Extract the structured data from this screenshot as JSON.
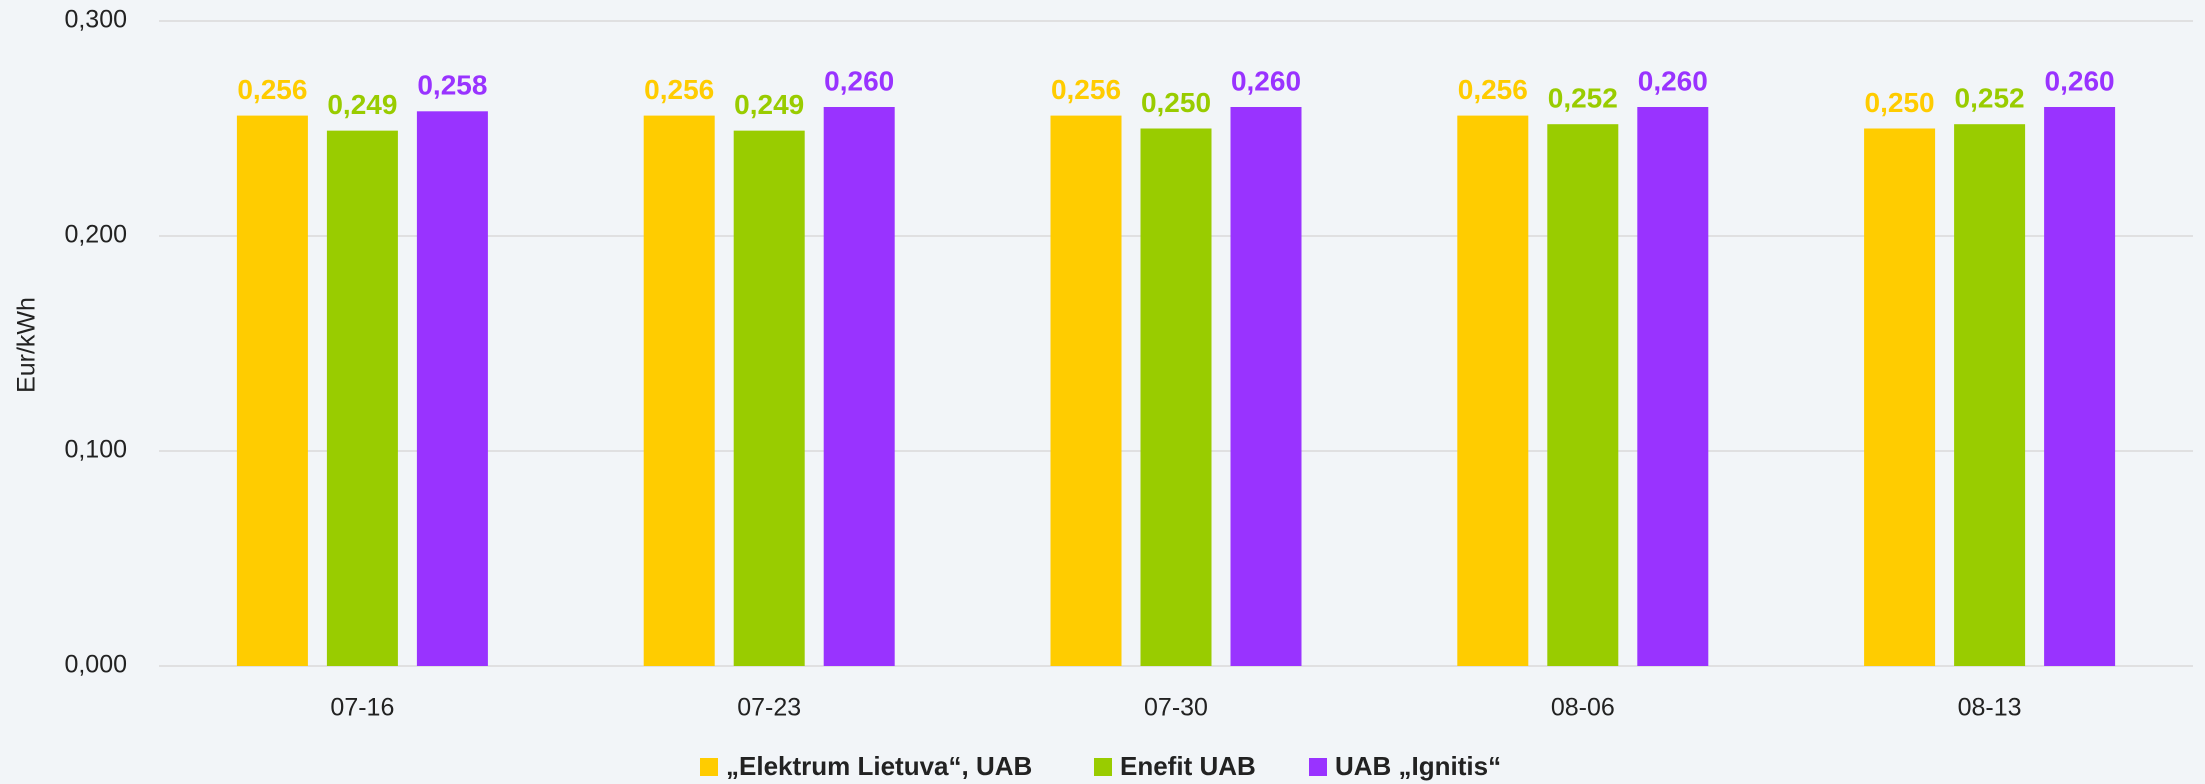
{
  "chart_data": {
    "type": "bar",
    "y_label": "Eur/kWh",
    "categories": [
      "07-16",
      "07-23",
      "07-30",
      "08-06",
      "08-13"
    ],
    "series": [
      {
        "name": "„Elektrum Lietuva“, UAB",
        "color": "#ffcc00",
        "values": [
          0.256,
          0.256,
          0.256,
          0.256,
          0.25
        ],
        "value_labels": [
          "0,256",
          "0,256",
          "0,256",
          "0,256",
          "0,250"
        ]
      },
      {
        "name": "Enefit UAB",
        "color": "#99cc00",
        "values": [
          0.249,
          0.249,
          0.25,
          0.252,
          0.252
        ],
        "value_labels": [
          "0,249",
          "0,249",
          "0,250",
          "0,252",
          "0,252"
        ]
      },
      {
        "name": "UAB „Ignitis“",
        "color": "#9933ff",
        "values": [
          0.258,
          0.26,
          0.26,
          0.26,
          0.26
        ],
        "value_labels": [
          "0,258",
          "0,260",
          "0,260",
          "0,260",
          "0,260"
        ]
      }
    ],
    "ylim": [
      0,
      0.3
    ],
    "yticks": [
      {
        "value": 0,
        "label": "0,000"
      },
      {
        "value": 0.1,
        "label": "0,100"
      },
      {
        "value": 0.2,
        "label": "0,200"
      },
      {
        "value": 0.3,
        "label": "0,300"
      }
    ],
    "grid": true,
    "legend": "bottom"
  }
}
